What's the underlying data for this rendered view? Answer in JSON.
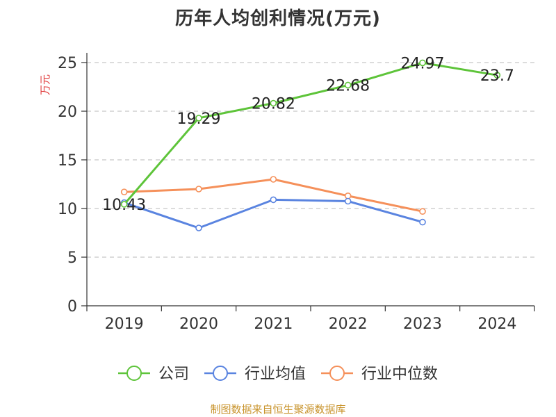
{
  "chart_data": {
    "type": "line",
    "title": "历年人均创利情况(万元)",
    "ylabel": "万元",
    "xlabel": "",
    "categories": [
      "2019",
      "2020",
      "2021",
      "2022",
      "2023",
      "2024"
    ],
    "ylim": [
      0,
      25
    ],
    "yticks": [
      0,
      5,
      10,
      15,
      20,
      25
    ],
    "grid": true,
    "legend_position": "bottom",
    "series": [
      {
        "name": "公司",
        "color": "#5ec43a",
        "values": [
          10.43,
          19.29,
          20.82,
          22.68,
          24.97,
          23.7
        ],
        "labels": [
          "10.43",
          "19.29",
          "20.82",
          "22.68",
          "24.97",
          "23.7"
        ]
      },
      {
        "name": "行业均值",
        "color": "#5a84e0",
        "values": [
          10.6,
          8.0,
          10.9,
          10.75,
          8.6,
          null
        ]
      },
      {
        "name": "行业中位数",
        "color": "#f5905a",
        "values": [
          11.7,
          12.0,
          13.0,
          11.3,
          9.7,
          null
        ]
      }
    ]
  },
  "footer": {
    "source": "制图数据来自恒生聚源数据库"
  }
}
